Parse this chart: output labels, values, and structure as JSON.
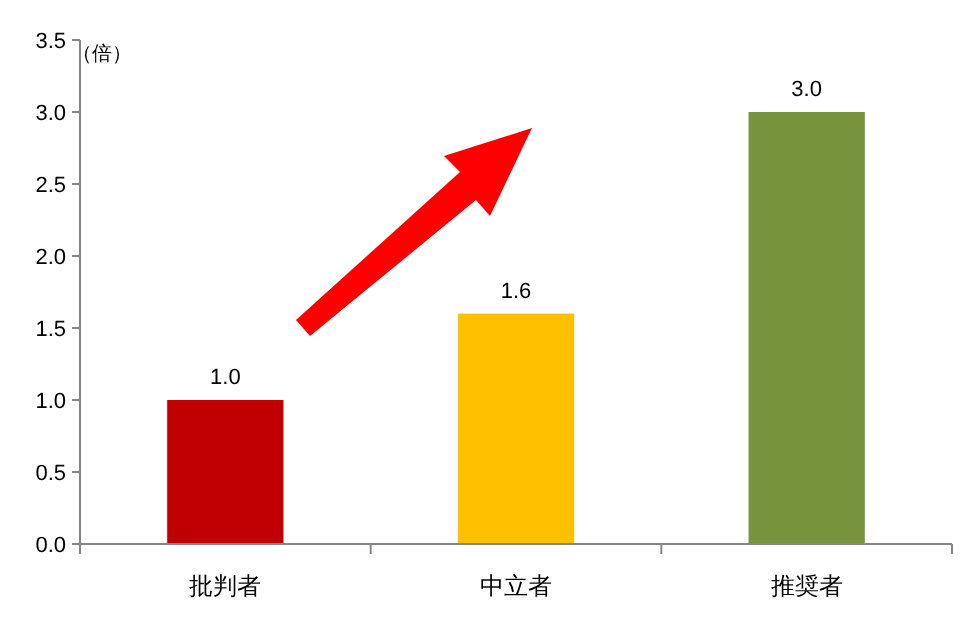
{
  "chart_data": {
    "type": "bar",
    "ylabel": "（倍）",
    "categories": [
      "批判者",
      "中立者",
      "推奨者"
    ],
    "values": [
      1.0,
      1.6,
      3.0
    ],
    "colors": [
      "#c00000",
      "#ffc000",
      "#77933c"
    ],
    "value_labels": [
      "1.0",
      "1.6",
      "3.0"
    ],
    "ylim": [
      0,
      3.5
    ],
    "yticks": [
      {
        "value": 0,
        "label": "0.0"
      },
      {
        "value": 0.5,
        "label": "0.5"
      },
      {
        "value": 1,
        "label": "1.0"
      },
      {
        "value": 1.5,
        "label": "1.5"
      },
      {
        "value": 2,
        "label": "2.0"
      },
      {
        "value": 2.5,
        "label": "2.5"
      },
      {
        "value": 3,
        "label": "3.0"
      },
      {
        "value": 3.5,
        "label": "3.5"
      }
    ],
    "grid": false
  }
}
